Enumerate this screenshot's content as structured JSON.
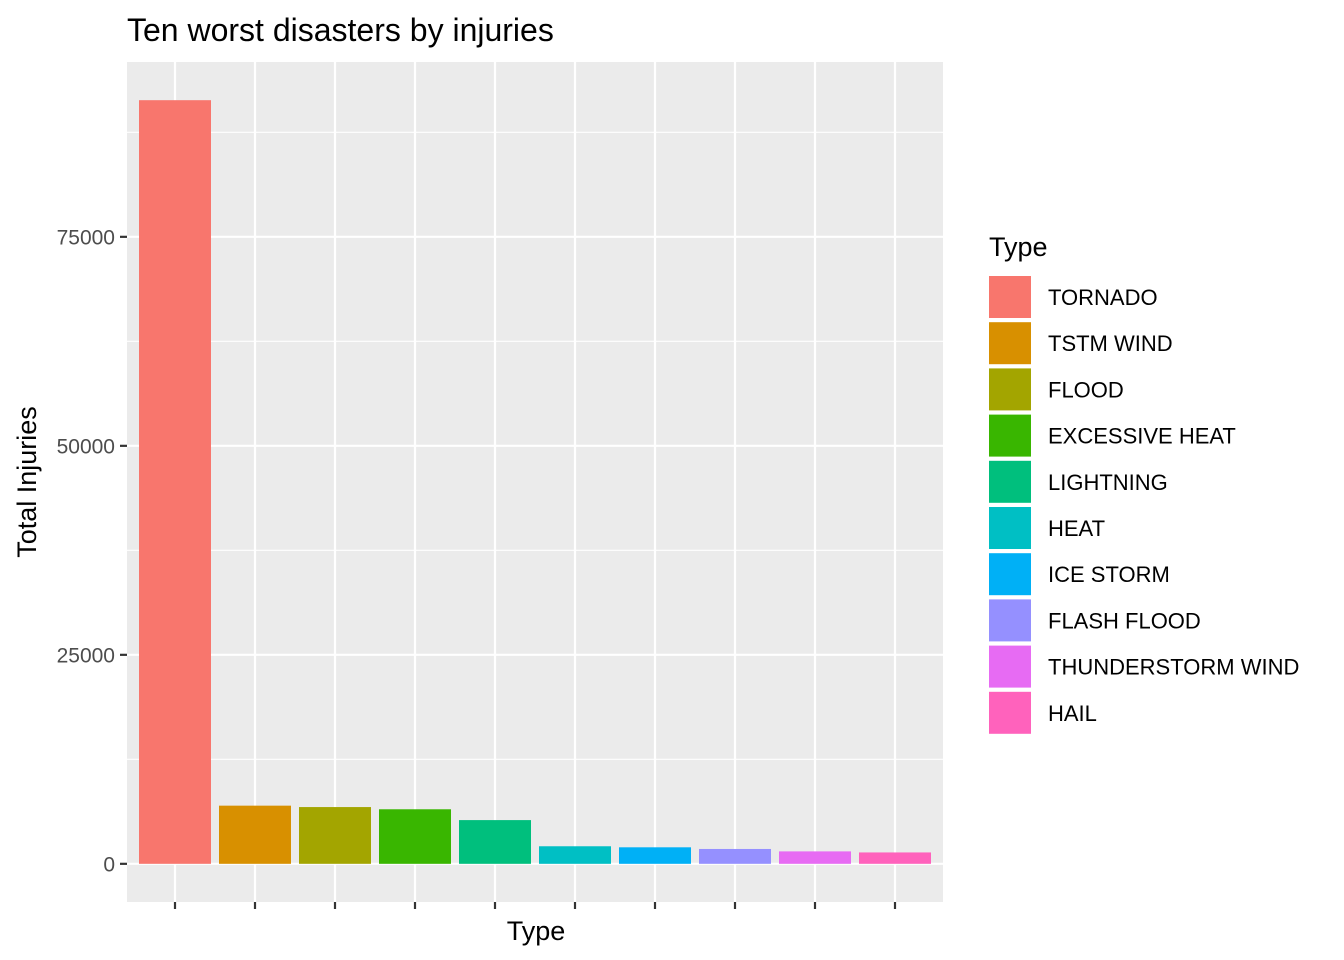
{
  "chart_data": {
    "type": "bar",
    "title": "Ten worst disasters by injuries",
    "xlabel": "Type",
    "ylabel": "Total Injuries",
    "categories": [
      "TORNADO",
      "TSTM WIND",
      "FLOOD",
      "EXCESSIVE HEAT",
      "LIGHTNING",
      "HEAT",
      "ICE STORM",
      "FLASH FLOOD",
      "THUNDERSTORM WIND",
      "HAIL"
    ],
    "values": [
      91346,
      6957,
      6789,
      6525,
      5230,
      2100,
      1975,
      1777,
      1488,
      1361
    ],
    "colors": [
      "#F8766D",
      "#D89000",
      "#A3A500",
      "#39B600",
      "#00BF7D",
      "#00BFC4",
      "#00B0F6",
      "#9590FF",
      "#E76BF3",
      "#FF62BC"
    ],
    "yticks": [
      0,
      25000,
      50000,
      75000
    ],
    "ytick_labels": [
      "0",
      "25000",
      "50000",
      "75000"
    ],
    "ylim": [
      -4567,
      95913
    ],
    "grid": true,
    "x_tick_labels_shown": false,
    "legend": {
      "title": "Type",
      "position": "right"
    },
    "panel_background": "#EBEBEB",
    "grid_color": "#FFFFFF"
  }
}
